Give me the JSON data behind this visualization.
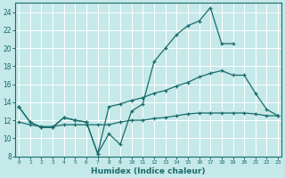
{
  "title": "",
  "xlabel": "Humidex (Indice chaleur)",
  "background_color": "#c5e8e8",
  "grid_color": "#ffffff",
  "line_color": "#1a6b6b",
  "x_ticks": [
    0,
    1,
    2,
    3,
    4,
    5,
    6,
    7,
    8,
    9,
    10,
    11,
    12,
    13,
    14,
    15,
    16,
    17,
    18,
    19,
    20,
    21,
    22,
    23
  ],
  "ylim": [
    8,
    25
  ],
  "xlim": [
    -0.3,
    23.3
  ],
  "yticks": [
    8,
    10,
    12,
    14,
    16,
    18,
    20,
    22,
    24
  ],
  "curve1_x": [
    0,
    1,
    2,
    3,
    4,
    5,
    6,
    7,
    8,
    9,
    10,
    11,
    12,
    13,
    14,
    15,
    16,
    17,
    18,
    19
  ],
  "curve1_y": [
    13.5,
    11.8,
    11.2,
    11.2,
    12.3,
    12.0,
    11.8,
    8.3,
    10.5,
    9.3,
    13.0,
    13.8,
    18.5,
    20.0,
    21.5,
    22.5,
    23.0,
    24.5,
    20.5,
    20.5
  ],
  "curve2_x": [
    0,
    1,
    2,
    3,
    4,
    5,
    6,
    7,
    8,
    9,
    10,
    11,
    12,
    13,
    14,
    15,
    16,
    17,
    18,
    19,
    20,
    21,
    22,
    23
  ],
  "curve2_y": [
    13.5,
    11.8,
    11.2,
    11.2,
    12.3,
    12.0,
    11.8,
    8.3,
    13.5,
    13.8,
    14.2,
    14.5,
    15.0,
    15.3,
    15.8,
    16.2,
    16.8,
    17.2,
    17.5,
    17.0,
    17.0,
    15.0,
    13.2,
    12.5
  ],
  "curve3_x": [
    0,
    1,
    2,
    3,
    4,
    5,
    6,
    7,
    8,
    9,
    10,
    11,
    12,
    13,
    14,
    15,
    16,
    17,
    18,
    19,
    20,
    21,
    22,
    23
  ],
  "curve3_y": [
    11.8,
    11.5,
    11.3,
    11.3,
    11.5,
    11.5,
    11.5,
    11.5,
    11.5,
    11.8,
    12.0,
    12.0,
    12.2,
    12.3,
    12.5,
    12.7,
    12.8,
    12.8,
    12.8,
    12.8,
    12.8,
    12.7,
    12.5,
    12.5
  ]
}
